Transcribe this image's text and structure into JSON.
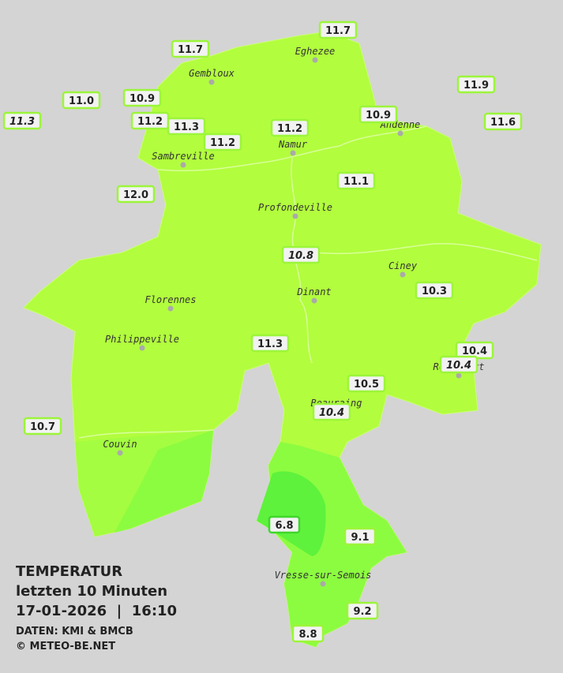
{
  "header": {
    "title": "TEMPERATUR",
    "subtitle": "letzten 10 Minuten",
    "timestamp": "17-01-2026  |  16:10",
    "source": "DATEN: KMI & BMCB",
    "copyright": "© METEO-BE.NET"
  },
  "cities": [
    "Eghezee",
    "Gembloux",
    "Andenne",
    "Namur",
    "Sambreville",
    "Profondeville",
    "Ciney",
    "Dinant",
    "Florennes",
    "Philippeville",
    "Rochefort",
    "Beauraing",
    "Couvin",
    "Vresse-sur-Semois"
  ],
  "stations": [
    {
      "label": "11.7"
    },
    {
      "label": "11.7"
    },
    {
      "label": "11.9"
    },
    {
      "label": "11.0"
    },
    {
      "label": "10.9"
    },
    {
      "label": "11.3",
      "italic": true
    },
    {
      "label": "11.2"
    },
    {
      "label": "11.3"
    },
    {
      "label": "11.2"
    },
    {
      "label": "10.9"
    },
    {
      "label": "11.6"
    },
    {
      "label": "11.2"
    },
    {
      "label": "12.0"
    },
    {
      "label": "11.1"
    },
    {
      "label": "10.8",
      "italic": true
    },
    {
      "label": "10.3"
    },
    {
      "label": "11.3"
    },
    {
      "label": "10.4"
    },
    {
      "label": "10.4",
      "italic": true
    },
    {
      "label": "10.5"
    },
    {
      "label": "10.4",
      "italic": true
    },
    {
      "label": "10.7"
    },
    {
      "label": "6.8"
    },
    {
      "label": "9.1"
    },
    {
      "label": "9.2"
    },
    {
      "label": "8.8"
    }
  ]
}
